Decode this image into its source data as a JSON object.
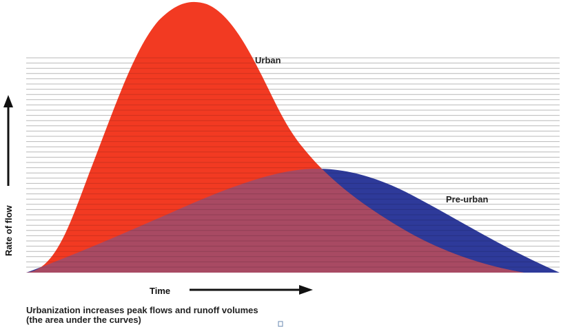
{
  "chart_data": {
    "type": "area",
    "xlabel": "Time",
    "ylabel": "Rate of flow",
    "series": [
      {
        "name": "Urban",
        "color": "#f23a22"
      },
      {
        "name": "Pre-urban",
        "color": "#2e3a9a"
      }
    ],
    "overlap_color": "#a84a63",
    "grid": true
  },
  "caption": {
    "line1": "Urbanization increases peak flows and runoff volumes",
    "line2": "(the area under the curves)"
  }
}
